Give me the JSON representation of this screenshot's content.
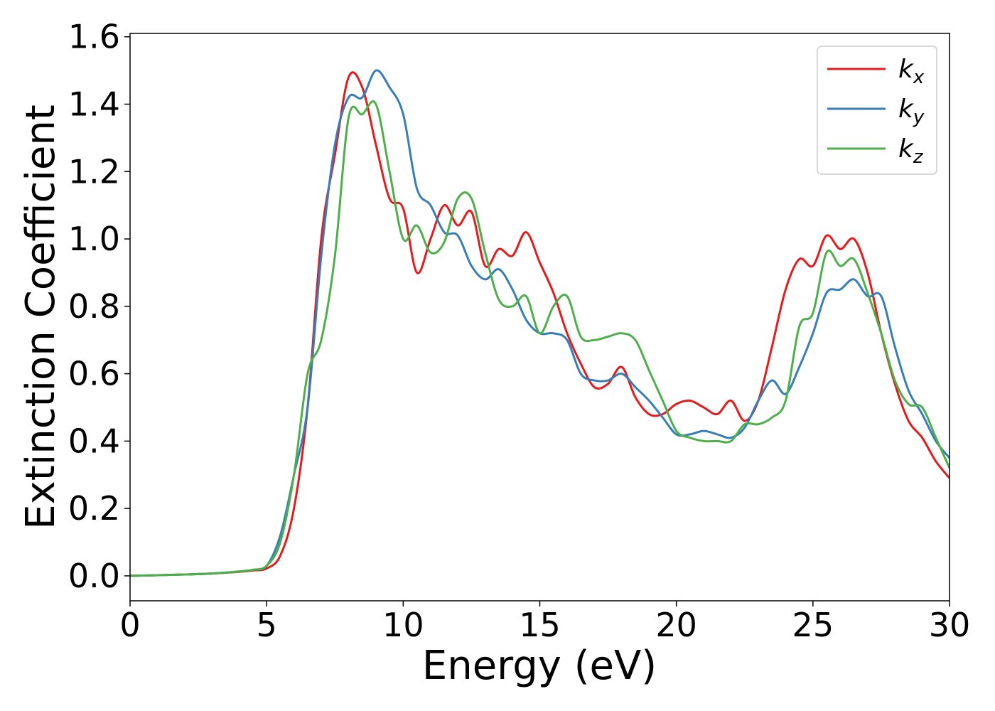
{
  "chart_data": {
    "type": "line",
    "xlabel": "Energy (eV)",
    "ylabel": "Extinction Coefficient",
    "x": [
      0,
      1,
      2,
      3,
      4,
      4.5,
      5,
      5.5,
      6,
      6.5,
      7,
      7.5,
      8,
      8.5,
      9,
      9.5,
      10,
      10.5,
      11,
      11.5,
      12,
      12.5,
      13,
      13.5,
      14,
      14.5,
      15,
      15.5,
      16,
      16.5,
      17,
      17.5,
      18,
      18.5,
      19,
      19.5,
      20,
      20.5,
      21,
      21.5,
      22,
      22.5,
      23,
      23.5,
      24,
      24.5,
      25,
      25.5,
      26,
      26.5,
      27,
      27.5,
      28,
      28.5,
      29,
      29.5,
      30
    ],
    "series": [
      {
        "name": "k_x",
        "color": "#e41a1c",
        "values": [
          0,
          0.002,
          0.004,
          0.007,
          0.012,
          0.016,
          0.022,
          0.06,
          0.2,
          0.5,
          1.0,
          1.25,
          1.48,
          1.45,
          1.28,
          1.12,
          1.09,
          0.9,
          1.0,
          1.1,
          1.04,
          1.08,
          0.92,
          0.97,
          0.95,
          1.02,
          0.93,
          0.84,
          0.72,
          0.63,
          0.56,
          0.57,
          0.62,
          0.53,
          0.48,
          0.48,
          0.51,
          0.52,
          0.5,
          0.48,
          0.52,
          0.46,
          0.52,
          0.68,
          0.85,
          0.94,
          0.92,
          1.01,
          0.97,
          1.0,
          0.9,
          0.72,
          0.57,
          0.46,
          0.41,
          0.34,
          0.29
        ]
      },
      {
        "name": "k_y",
        "color": "#377eb8",
        "values": [
          0,
          0.002,
          0.004,
          0.007,
          0.013,
          0.018,
          0.03,
          0.12,
          0.3,
          0.5,
          0.95,
          1.28,
          1.42,
          1.42,
          1.5,
          1.45,
          1.37,
          1.15,
          1.1,
          1.02,
          1.01,
          0.92,
          0.88,
          0.91,
          0.85,
          0.76,
          0.72,
          0.72,
          0.7,
          0.6,
          0.58,
          0.58,
          0.6,
          0.56,
          0.52,
          0.47,
          0.42,
          0.42,
          0.43,
          0.42,
          0.41,
          0.44,
          0.52,
          0.58,
          0.54,
          0.62,
          0.72,
          0.84,
          0.85,
          0.88,
          0.83,
          0.83,
          0.68,
          0.55,
          0.48,
          0.4,
          0.35
        ]
      },
      {
        "name": "k_z",
        "color": "#4daf4a",
        "values": [
          0,
          0.002,
          0.004,
          0.007,
          0.013,
          0.018,
          0.03,
          0.1,
          0.3,
          0.6,
          0.7,
          0.95,
          1.36,
          1.37,
          1.4,
          1.2,
          1.0,
          1.04,
          0.96,
          0.99,
          1.12,
          1.12,
          0.96,
          0.82,
          0.8,
          0.83,
          0.72,
          0.8,
          0.83,
          0.71,
          0.7,
          0.71,
          0.72,
          0.7,
          0.61,
          0.52,
          0.43,
          0.41,
          0.4,
          0.4,
          0.4,
          0.45,
          0.45,
          0.47,
          0.52,
          0.74,
          0.78,
          0.96,
          0.92,
          0.94,
          0.84,
          0.72,
          0.58,
          0.51,
          0.5,
          0.41,
          0.32
        ]
      }
    ],
    "xlim": [
      0,
      30
    ],
    "xticks": [
      0,
      5,
      10,
      15,
      20,
      25,
      30
    ],
    "ylim": [
      -0.074,
      1.61
    ],
    "yticks": [
      {
        "value": 0,
        "label": "0.0"
      },
      {
        "value": 0.2,
        "label": "0.2"
      },
      {
        "value": 0.4,
        "label": "0.4"
      },
      {
        "value": 0.6,
        "label": "0.6"
      },
      {
        "value": 0.8,
        "label": "0.8"
      },
      {
        "value": 1.0,
        "label": "1.0"
      },
      {
        "value": 1.2,
        "label": "1.2"
      },
      {
        "value": 1.4,
        "label": "1.4"
      },
      {
        "value": 1.6,
        "label": "1.6"
      }
    ],
    "legend": "upper right",
    "grid": false
  }
}
